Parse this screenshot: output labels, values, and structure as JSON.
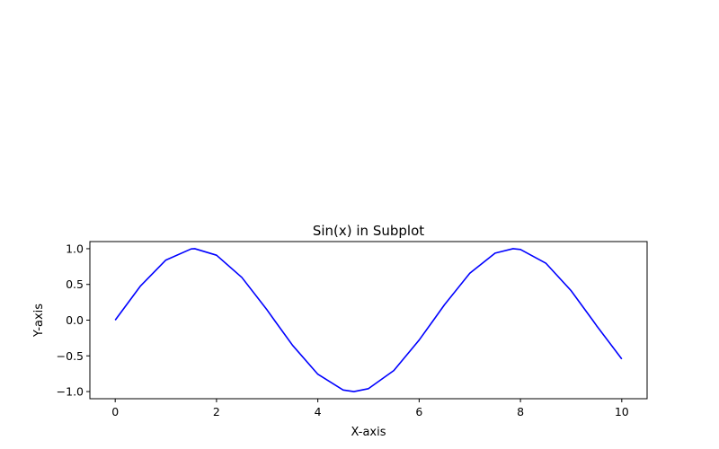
{
  "chart_data": {
    "type": "line",
    "title": "Sin(x) in Subplot",
    "xlabel": "X-axis",
    "ylabel": "Y-axis",
    "xlim": [
      -0.5,
      10.5
    ],
    "ylim": [
      -1.1,
      1.1
    ],
    "x_ticks": [
      0,
      2,
      4,
      6,
      8,
      10
    ],
    "x_tick_labels": [
      "0",
      "2",
      "4",
      "6",
      "8",
      "10"
    ],
    "y_ticks": [
      -1.0,
      -0.5,
      0.0,
      0.5,
      1.0
    ],
    "y_tick_labels": [
      "−1.0",
      "−0.5",
      "0.0",
      "0.5",
      "1.0"
    ],
    "grid": false,
    "legend": false,
    "series": [
      {
        "color": "#0000ff",
        "x": [
          0,
          0.5,
          1.0,
          1.5,
          1.5708,
          2.0,
          2.5,
          3.0,
          3.1416,
          3.5,
          4.0,
          4.5,
          4.7124,
          5.0,
          5.5,
          6.0,
          6.2832,
          6.5,
          7.0,
          7.5,
          7.854,
          8.0,
          8.5,
          9.0,
          9.4248,
          9.5,
          10.0
        ],
        "y": [
          0.0,
          0.479,
          0.841,
          0.997,
          1.0,
          0.909,
          0.598,
          0.141,
          0.0,
          -0.351,
          -0.757,
          -0.978,
          -1.0,
          -0.959,
          -0.706,
          -0.279,
          0.0,
          0.215,
          0.657,
          0.938,
          1.0,
          0.989,
          0.798,
          0.412,
          0.0,
          -0.075,
          -0.544
        ]
      }
    ]
  }
}
